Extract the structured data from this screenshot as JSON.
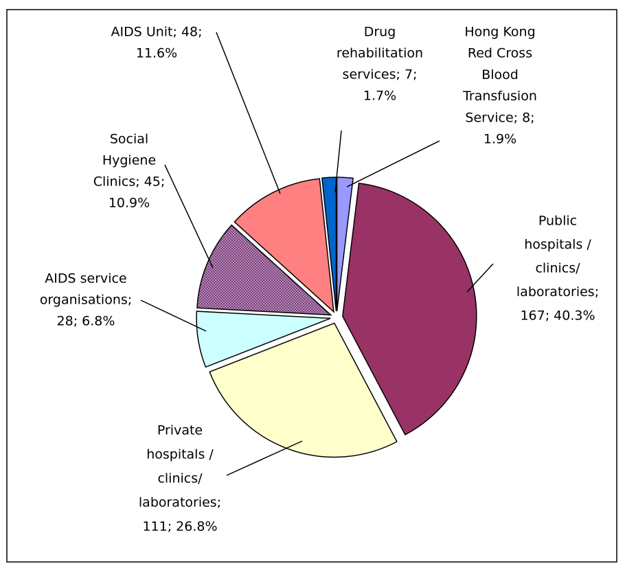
{
  "chart_data": {
    "type": "pie",
    "values": [
      8,
      167,
      111,
      28,
      45,
      48,
      7
    ],
    "labels": [
      [
        "Hong Kong",
        "Red Cross",
        "Blood",
        "Transfusion",
        "Service; 8;",
        "1.9%"
      ],
      [
        "Public",
        "hospitals /",
        "clinics/",
        "laboratories;",
        "167; 40.3%"
      ],
      [
        "Private",
        "hospitals /",
        "clinics/",
        "laboratories;",
        "111; 26.8%"
      ],
      [
        "AIDS service",
        "organisations;",
        "28; 6.8%"
      ],
      [
        "Social",
        "Hygiene",
        "Clinics; 45;",
        "10.9%"
      ],
      [
        "AIDS Unit; 48;",
        "11.6%"
      ],
      [
        "Drug",
        "rehabilitation",
        "services; 7;",
        "1.7%"
      ]
    ],
    "colors": [
      "#9999ff",
      "#993366",
      "#ffffcc",
      "#ccffff",
      "#cc99cc",
      "#ff8080",
      "#0066cc"
    ]
  }
}
